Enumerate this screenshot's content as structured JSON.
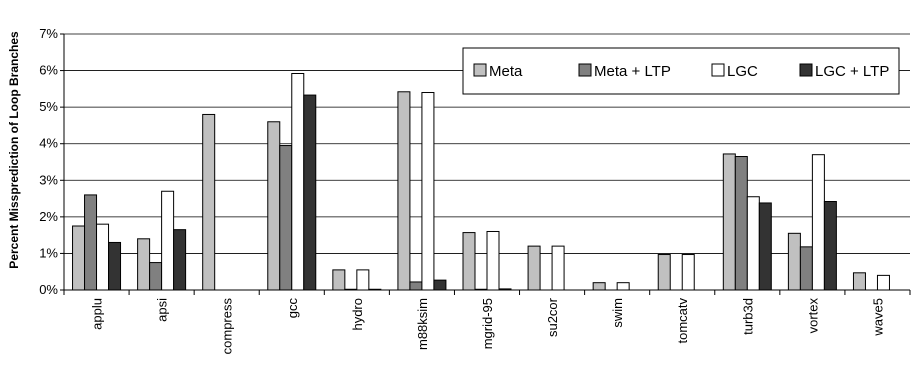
{
  "chart_data": {
    "type": "bar",
    "title": "",
    "xlabel": "",
    "ylabel": "Percent Missprediction of Loop Branches",
    "ylim": [
      0,
      7
    ],
    "yticks": [
      "0%",
      "1%",
      "2%",
      "3%",
      "4%",
      "5%",
      "6%",
      "7%"
    ],
    "grid": "horizontal",
    "legend_position": "top-right",
    "categories": [
      "applu",
      "apsi",
      "compress",
      "gcc",
      "hydro",
      "m88ksim",
      "mgrid-95",
      "su2cor",
      "swim",
      "tomcatv",
      "turb3d",
      "vortex",
      "wave5"
    ],
    "series": [
      {
        "name": "Meta",
        "color": "#c0c0c0",
        "values": [
          1.75,
          1.4,
          4.8,
          4.6,
          0.55,
          5.42,
          1.57,
          1.2,
          0.2,
          0.97,
          3.72,
          1.55,
          0.47
        ]
      },
      {
        "name": "Meta + LTP",
        "color": "#808080",
        "values": [
          2.6,
          0.75,
          0,
          3.95,
          0.02,
          0.22,
          0.02,
          0,
          0,
          0,
          3.65,
          1.18,
          0
        ]
      },
      {
        "name": "LGC",
        "color": "#ffffff",
        "values": [
          1.8,
          2.7,
          0,
          5.92,
          0.55,
          5.4,
          1.6,
          1.2,
          0.2,
          0.97,
          2.55,
          3.7,
          0.4
        ]
      },
      {
        "name": "LGC + LTP",
        "color": "#333333",
        "values": [
          1.3,
          1.65,
          0,
          5.33,
          0.02,
          0.27,
          0.03,
          0,
          0,
          0,
          2.38,
          2.42,
          0
        ]
      }
    ]
  }
}
